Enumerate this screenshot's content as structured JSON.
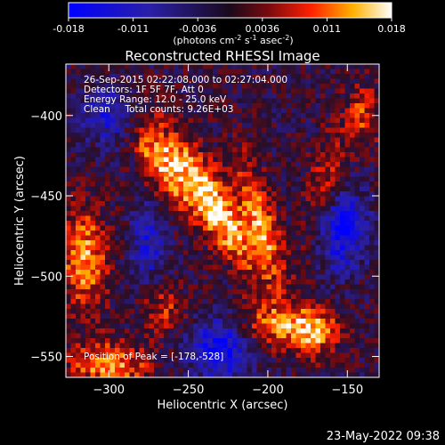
{
  "colorbar": {
    "ticks": [
      "-0.018",
      "-0.011",
      "-0.0036",
      "0.0036",
      "0.011",
      "0.018"
    ],
    "units_prefix": "(photons cm",
    "units_sup1": "-2",
    "units_mid1": " s",
    "units_sup2": "-1",
    "units_mid2": " asec",
    "units_sup3": "-2",
    "units_suffix": ")",
    "min": -0.018,
    "max": 0.018
  },
  "chart_data": {
    "type": "heatmap",
    "title": "Reconstructed RHESSI Image",
    "xlabel": "Heliocentric X (arcsec)",
    "ylabel": "Heliocentric Y (arcsec)",
    "xlim": [
      -327,
      -130
    ],
    "ylim": [
      -563,
      -368
    ],
    "xticks": [
      -300,
      -250,
      -200,
      -150
    ],
    "yticks": [
      -400,
      -450,
      -500,
      -550
    ],
    "info_lines": [
      "26-Sep-2015 02:22:08.000 to 02:27:04.000",
      "Detectors: 1F 5F 7F, Att 0",
      "Energy Range: 12.0 - 25.0 keV",
      "Clean     Total counts: 9.26E+03"
    ],
    "peak_label": "Position of Peak = [-178,-528]",
    "peak": [
      -178,
      -528
    ],
    "sources": [
      {
        "x": -235,
        "y": -455,
        "sx": 9,
        "sy": 35,
        "amp": 1.0,
        "rot": -0.55
      },
      {
        "x": -268,
        "y": -430,
        "sx": 8,
        "sy": 22,
        "amp": 0.7,
        "rot": -0.5
      },
      {
        "x": -205,
        "y": -465,
        "sx": 7,
        "sy": 28,
        "amp": 0.75,
        "rot": -0.3
      },
      {
        "x": -315,
        "y": -490,
        "sx": 10,
        "sy": 22,
        "amp": 0.8,
        "rot": 0
      },
      {
        "x": -195,
        "y": -530,
        "sx": 18,
        "sy": 10,
        "amp": 0.65,
        "rot": 0
      },
      {
        "x": -170,
        "y": -535,
        "sx": 10,
        "sy": 10,
        "amp": 0.7,
        "rot": 0
      },
      {
        "x": -300,
        "y": -555,
        "sx": 18,
        "sy": 10,
        "amp": 0.75,
        "rot": 0
      },
      {
        "x": -165,
        "y": -450,
        "sx": 8,
        "sy": 26,
        "amp": 0.55,
        "rot": 0.2
      },
      {
        "x": -265,
        "y": -520,
        "sx": 10,
        "sy": 10,
        "amp": 0.45,
        "rot": 0
      },
      {
        "x": -140,
        "y": -400,
        "sx": 8,
        "sy": 14,
        "amp": 0.5,
        "rot": 0
      },
      {
        "x": -155,
        "y": -470,
        "sx": 12,
        "sy": 18,
        "amp": -0.9,
        "rot": 0
      },
      {
        "x": -230,
        "y": -545,
        "sx": 14,
        "sy": 14,
        "amp": -0.85,
        "rot": 0
      },
      {
        "x": -300,
        "y": -400,
        "sx": 12,
        "sy": 12,
        "amp": -0.6,
        "rot": 0
      },
      {
        "x": -275,
        "y": -480,
        "sx": 8,
        "sy": 16,
        "amp": -0.6,
        "rot": 0
      }
    ]
  },
  "footer": "23-May-2022 09:38"
}
